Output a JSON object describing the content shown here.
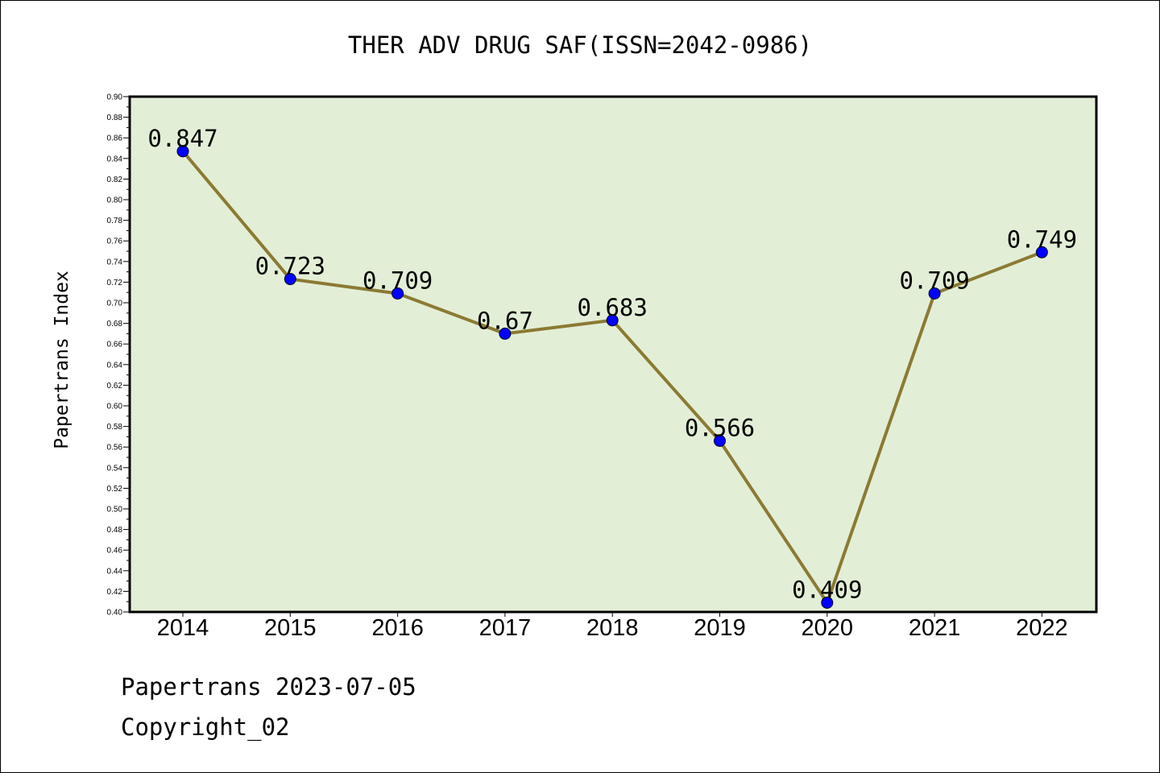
{
  "chart_data": {
    "type": "line",
    "title": "THER ADV DRUG SAF(ISSN=2042-0986)",
    "ylabel": "Papertrans Index",
    "xlabel": "",
    "categories": [
      "2014",
      "2015",
      "2016",
      "2017",
      "2018",
      "2019",
      "2020",
      "2021",
      "2022"
    ],
    "series": [
      {
        "values": [
          0.847,
          0.723,
          0.709,
          0.67,
          0.683,
          0.566,
          0.409,
          0.709,
          0.749
        ],
        "labels": [
          "0.847",
          "0.723",
          "0.709",
          "0.67",
          "0.683",
          "0.566",
          "0.409",
          "0.709",
          "0.749"
        ]
      }
    ],
    "ylim": [
      0.4,
      0.9
    ],
    "y_tick_labels": [
      "0.40",
      "0.42",
      "0.44",
      "0.46",
      "0.48",
      "0.50",
      "0.52",
      "0.54",
      "0.56",
      "0.58",
      "0.60",
      "0.62",
      "0.64",
      "0.66",
      "0.68",
      "0.70",
      "0.72",
      "0.74",
      "0.76",
      "0.78",
      "0.80",
      "0.82",
      "0.84",
      "0.86",
      "0.88",
      "0.90"
    ],
    "grid": false,
    "legend": "none",
    "colors": {
      "plot_background": "#e2efd6",
      "line": "#8b7a33",
      "marker": "#0000ff",
      "axes": "#000000"
    }
  },
  "footer": {
    "line1": "Papertrans 2023-07-05",
    "line2": "Copyright_02"
  }
}
